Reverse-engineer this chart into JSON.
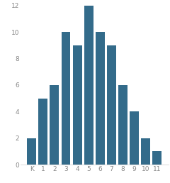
{
  "categories": [
    "K",
    "1",
    "2",
    "3",
    "4",
    "5",
    "6",
    "7",
    "8",
    "9",
    "10",
    "11"
  ],
  "values": [
    2,
    5,
    6,
    10,
    9,
    12,
    10,
    9,
    6,
    4,
    2,
    1
  ],
  "bar_color": "#336b8a",
  "ylim": [
    0,
    12
  ],
  "yticks": [
    0,
    2,
    4,
    6,
    8,
    10,
    12
  ],
  "background_color": "#ffffff",
  "edge_color": "none",
  "figsize": [
    2.4,
    2.58
  ],
  "dpi": 100
}
